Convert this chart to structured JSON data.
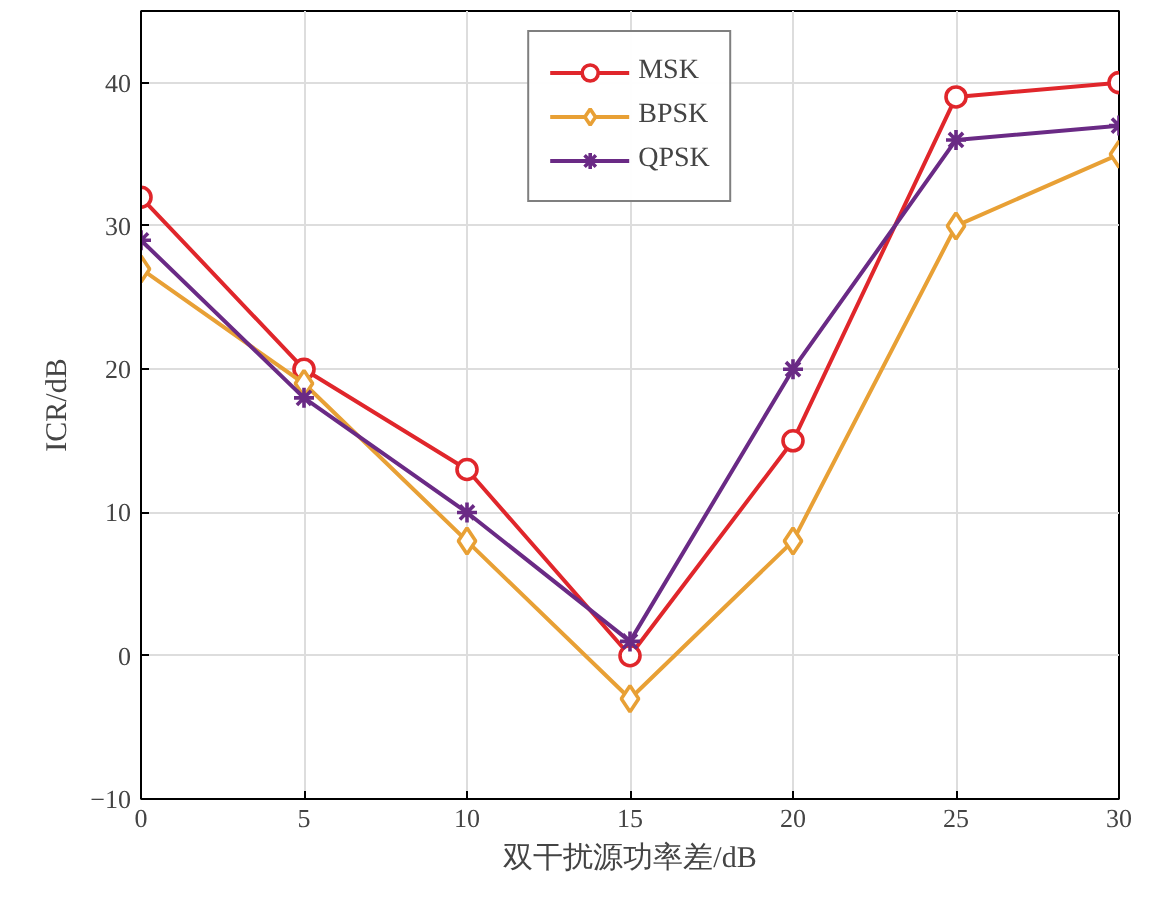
{
  "chart_data": {
    "type": "line",
    "xlabel": "双干扰源功率差/dB",
    "ylabel": "ICR/dB",
    "x": [
      0,
      5,
      10,
      15,
      20,
      25,
      30
    ],
    "series": [
      {
        "name": "MSK",
        "color": "#e0262b",
        "marker": "circle",
        "values": [
          32,
          20,
          13,
          0,
          15,
          39,
          40
        ]
      },
      {
        "name": "BPSK",
        "color": "#e8a035",
        "marker": "diamond",
        "values": [
          27,
          19,
          8,
          -3,
          8,
          30,
          35
        ]
      },
      {
        "name": "QPSK",
        "color": "#6a2a85",
        "marker": "cross",
        "values": [
          29,
          18,
          10,
          1,
          20,
          36,
          37
        ]
      }
    ],
    "xlim": [
      0,
      30
    ],
    "ylim": [
      -10,
      45
    ],
    "xticks": [
      0,
      5,
      10,
      15,
      20,
      25,
      30
    ],
    "yticks": [
      -10,
      0,
      10,
      20,
      30,
      40
    ],
    "grid": true,
    "legend": "top",
    "line_style": "solid"
  }
}
